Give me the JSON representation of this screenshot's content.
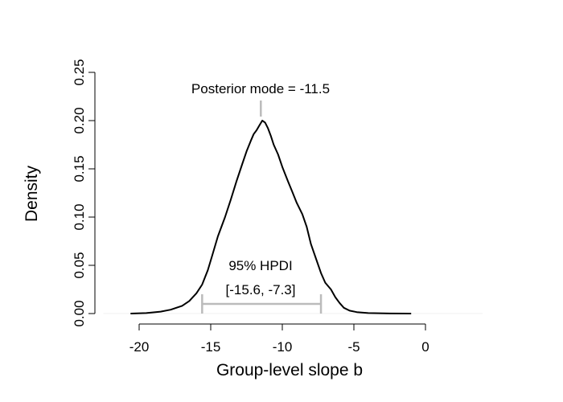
{
  "chart_data": {
    "type": "line",
    "title": "",
    "xlabel": "Group-level slope b",
    "ylabel": "Density",
    "xlim": [
      -22.5,
      4
    ],
    "ylim": [
      0,
      0.25
    ],
    "x_ticks": [
      -20,
      -15,
      -10,
      -5,
      0
    ],
    "x_tick_labels": [
      "-20",
      "-15",
      "-10",
      "-5",
      "0"
    ],
    "y_ticks": [
      0,
      0.05,
      0.1,
      0.15,
      0.2,
      0.25
    ],
    "y_tick_labels": [
      "0.00",
      "0.05",
      "0.10",
      "0.15",
      "0.20",
      "0.25"
    ],
    "grid": false,
    "series": [
      {
        "x": [
          -20.6,
          -19.5,
          -18.5,
          -17.8,
          -17.0,
          -16.5,
          -16.0,
          -15.6,
          -15.2,
          -14.9,
          -14.5,
          -14.0,
          -13.6,
          -13.2,
          -12.8,
          -12.5,
          -12.2,
          -12.0,
          -11.8,
          -11.6,
          -11.4,
          -11.2,
          -11.0,
          -10.8,
          -10.6,
          -10.3,
          -10.0,
          -9.6,
          -9.3,
          -9.0,
          -8.6,
          -8.3,
          -8.0,
          -7.6,
          -7.3,
          -7.0,
          -6.6,
          -6.3,
          -6.0,
          -5.7,
          -5.3,
          -4.8,
          -4.0,
          -2.5,
          -1.0
        ],
        "y": [
          0.0,
          0.0005,
          0.002,
          0.004,
          0.008,
          0.013,
          0.021,
          0.03,
          0.045,
          0.06,
          0.08,
          0.1,
          0.118,
          0.137,
          0.155,
          0.168,
          0.179,
          0.186,
          0.19,
          0.195,
          0.2,
          0.198,
          0.192,
          0.184,
          0.175,
          0.165,
          0.152,
          0.137,
          0.126,
          0.115,
          0.103,
          0.09,
          0.072,
          0.055,
          0.042,
          0.032,
          0.025,
          0.017,
          0.011,
          0.006,
          0.003,
          0.0015,
          0.0005,
          0.0001,
          0.0
        ]
      }
    ],
    "annotations": {
      "mode_label": "Posterior mode = -11.5",
      "mode": -11.5,
      "hpdi_label": "95% HPDI",
      "hpdi_range_label": "[-15.6, -7.3]",
      "hpdi": [
        -15.6,
        -7.3
      ],
      "annotation_color": "#bbbbbb"
    }
  }
}
